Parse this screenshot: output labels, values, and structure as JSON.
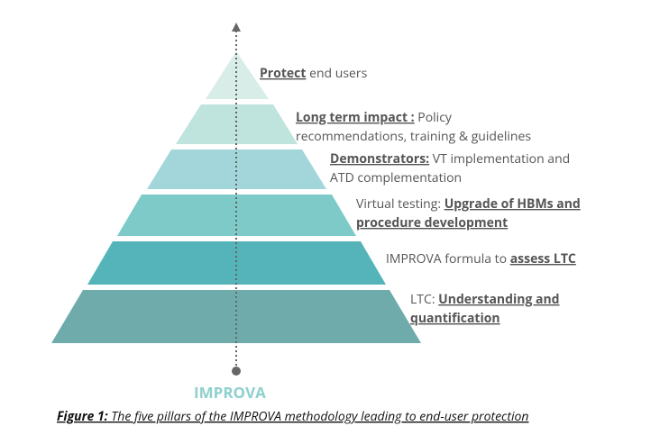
{
  "levels": [
    {
      "lines": [
        [
          {
            "text": "Protect",
            "bold": true
          },
          {
            "text": " end users",
            "bold": false
          }
        ]
      ]
    },
    {
      "lines": [
        [
          {
            "text": "Long term impact :",
            "bold": true
          },
          {
            "text": " Policy",
            "bold": false
          }
        ],
        [
          {
            "text": "recommendations, training & guidelines",
            "bold": false
          }
        ]
      ]
    },
    {
      "lines": [
        [
          {
            "text": "Demonstrators:",
            "bold": true
          },
          {
            "text": " VT implementation and",
            "bold": false
          }
        ],
        [
          {
            "text": "ATD complementation",
            "bold": false
          }
        ]
      ]
    },
    {
      "lines": [
        [
          {
            "text": "Virtual testing: ",
            "bold": false
          },
          {
            "text": "Upgrade of HBMs and",
            "bold": true
          }
        ],
        [
          {
            "text": "procedure development",
            "bold": true
          }
        ]
      ]
    },
    {
      "lines": [
        [
          {
            "text": "IMPROVA formula to ",
            "bold": false
          },
          {
            "text": "assess LTC",
            "bold": true
          }
        ]
      ]
    },
    {
      "lines": [
        [
          {
            "text": "LTC: ",
            "bold": false
          },
          {
            "text": "Understanding and",
            "bold": true
          }
        ],
        [
          {
            "text": "quantification",
            "bold": true
          }
        ]
      ]
    }
  ],
  "axis_label": "IMPROVA",
  "caption": {
    "prefix": "Figure 1:",
    "text": " The five pillars of the IMPROVA methodology leading to end-user protection"
  }
}
